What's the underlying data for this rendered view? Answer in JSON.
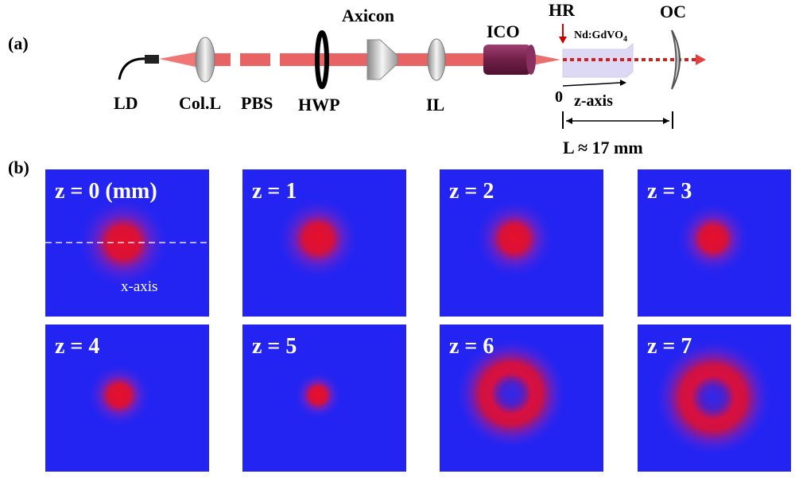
{
  "panel_a": {
    "label": "(a)",
    "components": {
      "ld": "LD",
      "coll": "Col.L",
      "pbs": "PBS",
      "hwp": "HWP",
      "axicon": "Axicon",
      "il": "IL",
      "ico": "ICO",
      "hr": "HR",
      "crystal": {
        "text": "Nd:GdVO",
        "subscript": "4"
      },
      "oc": "OC"
    },
    "origin": "0",
    "z_axis": "z-axis",
    "length": "L ≈ 17 mm"
  },
  "panel_b": {
    "label": "(b)",
    "x_axis": "x-axis",
    "tiles": [
      "z = 0 (mm)",
      "z = 1",
      "z = 2",
      "z = 3",
      "z = 4",
      "z = 5",
      "z = 6",
      "z = 7"
    ]
  }
}
